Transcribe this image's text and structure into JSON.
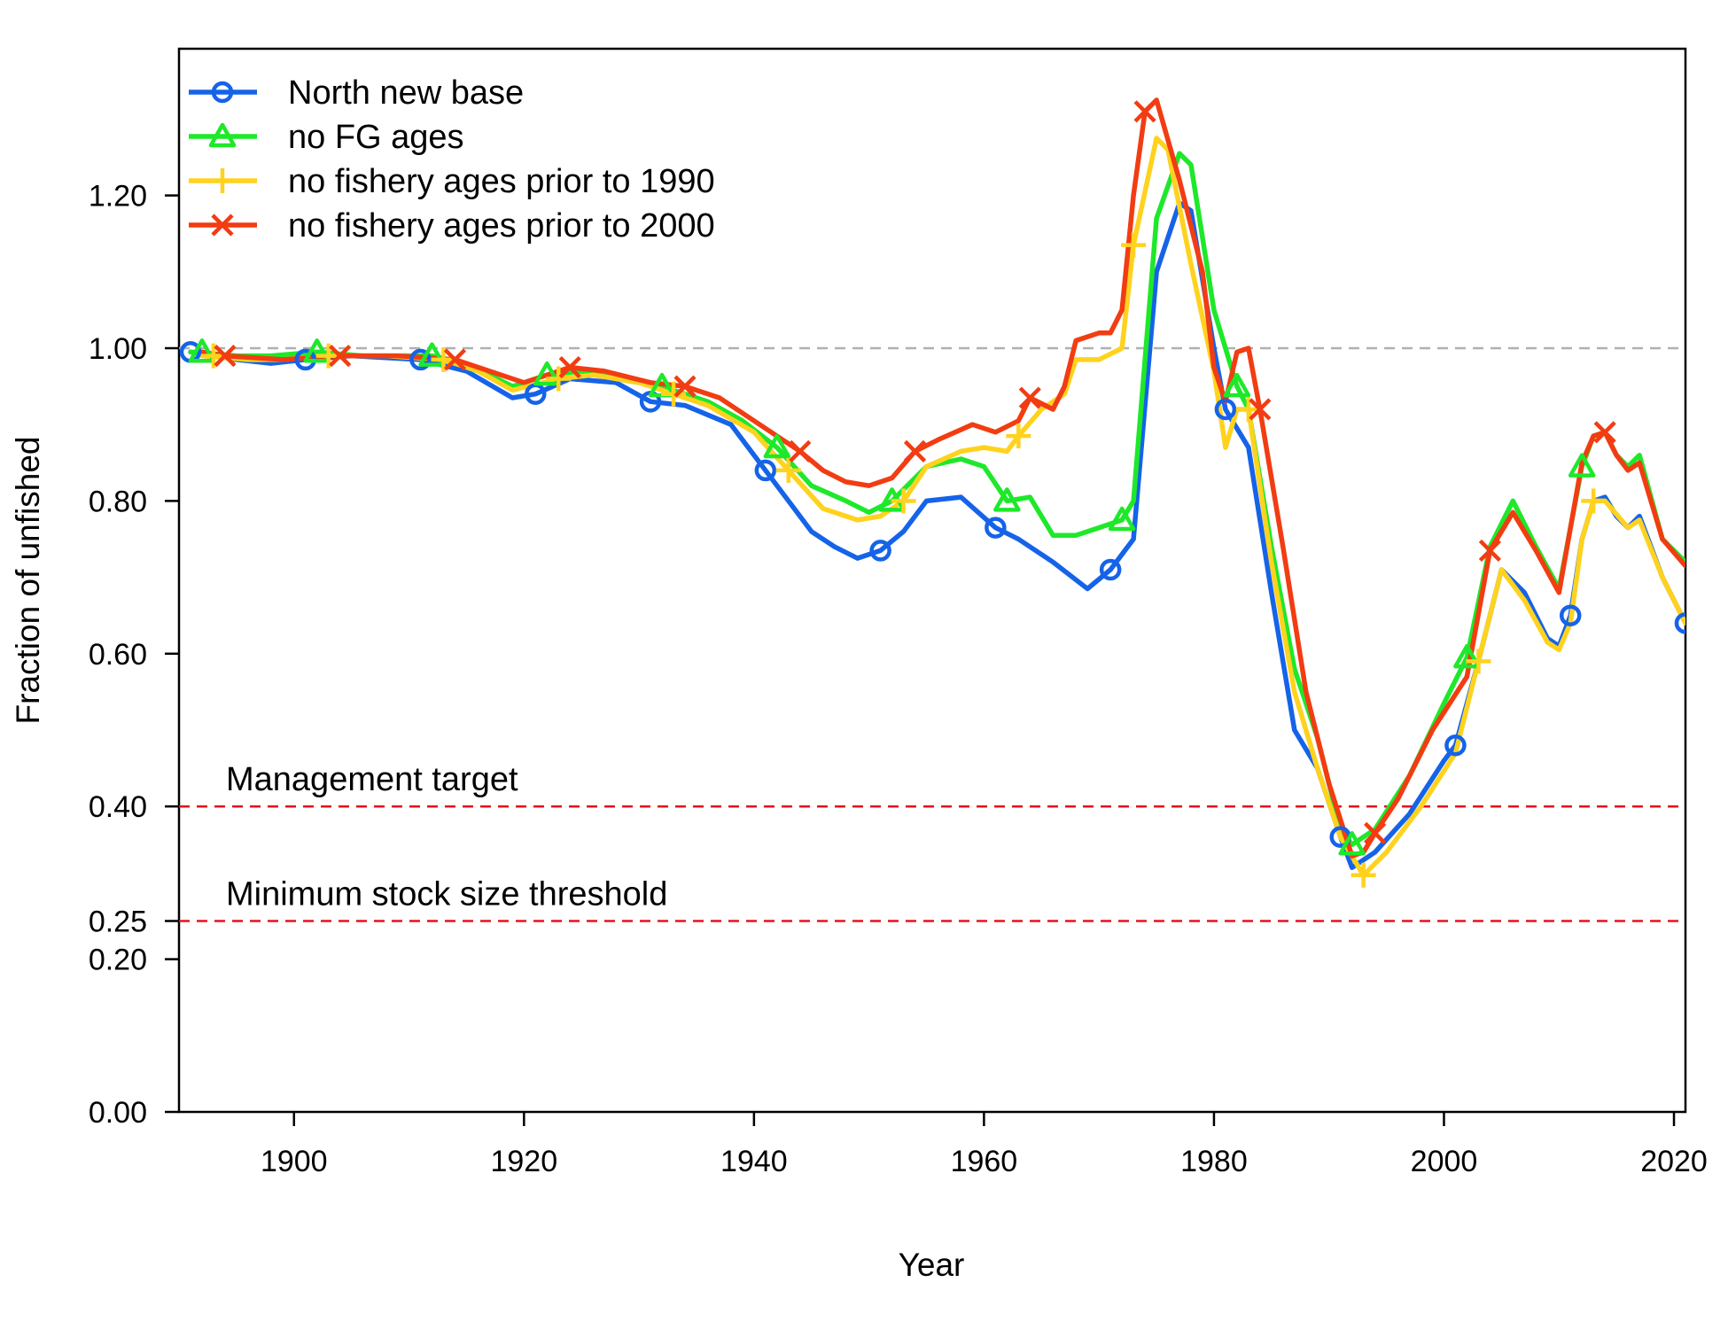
{
  "chart_data": {
    "type": "line",
    "xlabel": "Year",
    "ylabel": "Fraction of unfished",
    "xlim": [
      1890,
      2021
    ],
    "ylim": [
      0,
      1.4
    ],
    "x_ticks": [
      1900,
      1920,
      1940,
      1960,
      1980,
      2000,
      2020
    ],
    "y_ticks": [
      0,
      0.2,
      0.25,
      0.4,
      0.6,
      0.8,
      1.0,
      1.2
    ],
    "y_tick_labels": [
      "0.00",
      "0.20",
      "0.25",
      "0.40",
      "0.60",
      "0.80",
      "1.00",
      "1.20"
    ],
    "x_tick_labels": [
      "1900",
      "1920",
      "1940",
      "1960",
      "1980",
      "2000",
      "2020"
    ],
    "legend_position": "top-left",
    "reference_lines": [
      {
        "y": 1.0,
        "color": "#b0b0b0",
        "label": ""
      },
      {
        "y": 0.4,
        "color": "#e8101e",
        "label": "Management target"
      },
      {
        "y": 0.25,
        "color": "#e8101e",
        "label": "Minimum stock size threshold"
      }
    ],
    "series": [
      {
        "name": "North new base",
        "color": "#1563e8",
        "marker": "circle",
        "points": [
          [
            1891,
            0.995
          ],
          [
            1895,
            0.985
          ],
          [
            1898,
            0.98
          ],
          [
            1901,
            0.985
          ],
          [
            1905,
            0.99
          ],
          [
            1911,
            0.985
          ],
          [
            1915,
            0.97
          ],
          [
            1919,
            0.935
          ],
          [
            1921,
            0.94
          ],
          [
            1924,
            0.96
          ],
          [
            1928,
            0.955
          ],
          [
            1931,
            0.93
          ],
          [
            1934,
            0.925
          ],
          [
            1938,
            0.9
          ],
          [
            1941,
            0.84
          ],
          [
            1943,
            0.8
          ],
          [
            1945,
            0.76
          ],
          [
            1947,
            0.74
          ],
          [
            1949,
            0.725
          ],
          [
            1951,
            0.735
          ],
          [
            1953,
            0.76
          ],
          [
            1955,
            0.8
          ],
          [
            1958,
            0.805
          ],
          [
            1961,
            0.765
          ],
          [
            1963,
            0.75
          ],
          [
            1966,
            0.72
          ],
          [
            1969,
            0.685
          ],
          [
            1971,
            0.71
          ],
          [
            1973,
            0.75
          ],
          [
            1975,
            1.1
          ],
          [
            1977,
            1.19
          ],
          [
            1978,
            1.18
          ],
          [
            1980,
            1.0
          ],
          [
            1981,
            0.92
          ],
          [
            1983,
            0.87
          ],
          [
            1985,
            0.68
          ],
          [
            1987,
            0.5
          ],
          [
            1989,
            0.45
          ],
          [
            1991,
            0.36
          ],
          [
            1992,
            0.32
          ],
          [
            1994,
            0.34
          ],
          [
            1997,
            0.39
          ],
          [
            2000,
            0.46
          ],
          [
            2001,
            0.48
          ],
          [
            2003,
            0.59
          ],
          [
            2005,
            0.71
          ],
          [
            2007,
            0.68
          ],
          [
            2009,
            0.62
          ],
          [
            2010,
            0.61
          ],
          [
            2011,
            0.65
          ],
          [
            2012,
            0.75
          ],
          [
            2013,
            0.8
          ],
          [
            2014,
            0.805
          ],
          [
            2015,
            0.78
          ],
          [
            2016,
            0.765
          ],
          [
            2017,
            0.78
          ],
          [
            2019,
            0.7
          ],
          [
            2021,
            0.64
          ]
        ]
      },
      {
        "name": "no FG ages",
        "color": "#1ee82a",
        "marker": "triangle",
        "points": [
          [
            1891,
            0.995
          ],
          [
            1895,
            0.99
          ],
          [
            1898,
            0.99
          ],
          [
            1902,
            0.995
          ],
          [
            1906,
            0.99
          ],
          [
            1912,
            0.99
          ],
          [
            1915,
            0.98
          ],
          [
            1919,
            0.95
          ],
          [
            1922,
            0.965
          ],
          [
            1925,
            0.97
          ],
          [
            1928,
            0.96
          ],
          [
            1932,
            0.95
          ],
          [
            1936,
            0.93
          ],
          [
            1939,
            0.905
          ],
          [
            1942,
            0.87
          ],
          [
            1945,
            0.82
          ],
          [
            1948,
            0.8
          ],
          [
            1950,
            0.785
          ],
          [
            1952,
            0.8
          ],
          [
            1955,
            0.845
          ],
          [
            1958,
            0.855
          ],
          [
            1960,
            0.845
          ],
          [
            1962,
            0.8
          ],
          [
            1964,
            0.805
          ],
          [
            1966,
            0.755
          ],
          [
            1968,
            0.755
          ],
          [
            1970,
            0.765
          ],
          [
            1972,
            0.775
          ],
          [
            1973,
            0.8
          ],
          [
            1975,
            1.17
          ],
          [
            1977,
            1.255
          ],
          [
            1978,
            1.24
          ],
          [
            1980,
            1.05
          ],
          [
            1982,
            0.95
          ],
          [
            1983,
            0.92
          ],
          [
            1985,
            0.74
          ],
          [
            1987,
            0.58
          ],
          [
            1989,
            0.49
          ],
          [
            1991,
            0.37
          ],
          [
            1992,
            0.35
          ],
          [
            1994,
            0.37
          ],
          [
            1997,
            0.44
          ],
          [
            2000,
            0.535
          ],
          [
            2002,
            0.595
          ],
          [
            2004,
            0.74
          ],
          [
            2006,
            0.8
          ],
          [
            2008,
            0.74
          ],
          [
            2010,
            0.685
          ],
          [
            2012,
            0.845
          ],
          [
            2013,
            0.885
          ],
          [
            2014,
            0.89
          ],
          [
            2015,
            0.86
          ],
          [
            2016,
            0.845
          ],
          [
            2017,
            0.86
          ],
          [
            2019,
            0.75
          ],
          [
            2021,
            0.72
          ]
        ]
      },
      {
        "name": "no fishery ages prior to 1990",
        "color": "#ffd21e",
        "marker": "plus",
        "points": [
          [
            1892,
            0.99
          ],
          [
            1896,
            0.985
          ],
          [
            1899,
            0.985
          ],
          [
            1903,
            0.99
          ],
          [
            1908,
            0.99
          ],
          [
            1913,
            0.985
          ],
          [
            1916,
            0.97
          ],
          [
            1919,
            0.945
          ],
          [
            1923,
            0.96
          ],
          [
            1926,
            0.965
          ],
          [
            1930,
            0.955
          ],
          [
            1933,
            0.94
          ],
          [
            1936,
            0.925
          ],
          [
            1940,
            0.89
          ],
          [
            1943,
            0.84
          ],
          [
            1946,
            0.79
          ],
          [
            1949,
            0.775
          ],
          [
            1951,
            0.78
          ],
          [
            1953,
            0.8
          ],
          [
            1955,
            0.845
          ],
          [
            1958,
            0.865
          ],
          [
            1960,
            0.87
          ],
          [
            1962,
            0.865
          ],
          [
            1963,
            0.885
          ],
          [
            1965,
            0.92
          ],
          [
            1967,
            0.94
          ],
          [
            1968,
            0.985
          ],
          [
            1970,
            0.985
          ],
          [
            1972,
            1.0
          ],
          [
            1973,
            1.135
          ],
          [
            1975,
            1.275
          ],
          [
            1976,
            1.26
          ],
          [
            1978,
            1.11
          ],
          [
            1980,
            0.97
          ],
          [
            1981,
            0.87
          ],
          [
            1982,
            0.92
          ],
          [
            1983,
            0.92
          ],
          [
            1985,
            0.72
          ],
          [
            1987,
            0.55
          ],
          [
            1989,
            0.45
          ],
          [
            1991,
            0.36
          ],
          [
            1993,
            0.31
          ],
          [
            1995,
            0.34
          ],
          [
            1998,
            0.4
          ],
          [
            2001,
            0.47
          ],
          [
            2003,
            0.59
          ],
          [
            2005,
            0.71
          ],
          [
            2007,
            0.67
          ],
          [
            2009,
            0.615
          ],
          [
            2010,
            0.605
          ],
          [
            2011,
            0.64
          ],
          [
            2012,
            0.75
          ],
          [
            2013,
            0.8
          ],
          [
            2014,
            0.8
          ],
          [
            2016,
            0.765
          ],
          [
            2017,
            0.775
          ],
          [
            2019,
            0.7
          ],
          [
            2021,
            0.64
          ]
        ]
      },
      {
        "name": "no fishery ages prior to 2000",
        "color": "#f23c12",
        "marker": "cross",
        "points": [
          [
            1892,
            0.995
          ],
          [
            1894,
            0.99
          ],
          [
            1899,
            0.985
          ],
          [
            1904,
            0.99
          ],
          [
            1909,
            0.99
          ],
          [
            1914,
            0.985
          ],
          [
            1917,
            0.97
          ],
          [
            1920,
            0.955
          ],
          [
            1924,
            0.975
          ],
          [
            1927,
            0.97
          ],
          [
            1931,
            0.955
          ],
          [
            1934,
            0.95
          ],
          [
            1937,
            0.935
          ],
          [
            1941,
            0.895
          ],
          [
            1944,
            0.865
          ],
          [
            1946,
            0.84
          ],
          [
            1948,
            0.825
          ],
          [
            1950,
            0.82
          ],
          [
            1952,
            0.83
          ],
          [
            1954,
            0.865
          ],
          [
            1956,
            0.88
          ],
          [
            1959,
            0.9
          ],
          [
            1961,
            0.89
          ],
          [
            1963,
            0.905
          ],
          [
            1964,
            0.935
          ],
          [
            1966,
            0.92
          ],
          [
            1967,
            0.95
          ],
          [
            1968,
            1.01
          ],
          [
            1970,
            1.02
          ],
          [
            1971,
            1.02
          ],
          [
            1972,
            1.05
          ],
          [
            1973,
            1.2
          ],
          [
            1974,
            1.31
          ],
          [
            1975,
            1.325
          ],
          [
            1977,
            1.22
          ],
          [
            1979,
            1.1
          ],
          [
            1980,
            0.975
          ],
          [
            1981,
            0.93
          ],
          [
            1982,
            0.995
          ],
          [
            1983,
            1.0
          ],
          [
            1984,
            0.92
          ],
          [
            1986,
            0.74
          ],
          [
            1988,
            0.55
          ],
          [
            1990,
            0.43
          ],
          [
            1992,
            0.335
          ],
          [
            1993,
            0.34
          ],
          [
            1994,
            0.365
          ],
          [
            1996,
            0.41
          ],
          [
            1999,
            0.5
          ],
          [
            2002,
            0.57
          ],
          [
            2004,
            0.735
          ],
          [
            2006,
            0.785
          ],
          [
            2008,
            0.735
          ],
          [
            2010,
            0.68
          ],
          [
            2012,
            0.85
          ],
          [
            2013,
            0.885
          ],
          [
            2014,
            0.89
          ],
          [
            2015,
            0.86
          ],
          [
            2016,
            0.84
          ],
          [
            2017,
            0.85
          ],
          [
            2019,
            0.75
          ],
          [
            2021,
            0.715
          ]
        ]
      }
    ],
    "marker_points": [
      [
        [
          1891,
          0.995
        ],
        [
          1901,
          0.985
        ],
        [
          1911,
          0.985
        ],
        [
          1921,
          0.94
        ],
        [
          1931,
          0.93
        ],
        [
          1941,
          0.84
        ],
        [
          1951,
          0.735
        ],
        [
          1961,
          0.765
        ],
        [
          1971,
          0.71
        ],
        [
          1981,
          0.92
        ],
        [
          1991,
          0.36
        ],
        [
          2001,
          0.48
        ],
        [
          2011,
          0.65
        ],
        [
          2021,
          0.64
        ]
      ],
      [
        [
          1892,
          0.995
        ],
        [
          1902,
          0.995
        ],
        [
          1912,
          0.99
        ],
        [
          1922,
          0.965
        ],
        [
          1932,
          0.95
        ],
        [
          1942,
          0.87
        ],
        [
          1952,
          0.8
        ],
        [
          1962,
          0.8
        ],
        [
          1972,
          0.775
        ],
        [
          1982,
          0.95
        ],
        [
          1992,
          0.35
        ],
        [
          2002,
          0.595
        ],
        [
          2012,
          0.845
        ]
      ],
      [
        [
          1893,
          0.99
        ],
        [
          1903,
          0.99
        ],
        [
          1913,
          0.985
        ],
        [
          1923,
          0.96
        ],
        [
          1933,
          0.94
        ],
        [
          1943,
          0.84
        ],
        [
          1953,
          0.8
        ],
        [
          1963,
          0.885
        ],
        [
          1973,
          1.135
        ],
        [
          1983,
          0.92
        ],
        [
          1993,
          0.31
        ],
        [
          2003,
          0.59
        ],
        [
          2013,
          0.8
        ]
      ],
      [
        [
          1894,
          0.99
        ],
        [
          1904,
          0.99
        ],
        [
          1914,
          0.985
        ],
        [
          1924,
          0.975
        ],
        [
          1934,
          0.95
        ],
        [
          1944,
          0.865
        ],
        [
          1954,
          0.865
        ],
        [
          1964,
          0.935
        ],
        [
          1974,
          1.31
        ],
        [
          1984,
          0.92
        ],
        [
          1994,
          0.365
        ],
        [
          2004,
          0.735
        ],
        [
          2014,
          0.89
        ]
      ]
    ]
  }
}
